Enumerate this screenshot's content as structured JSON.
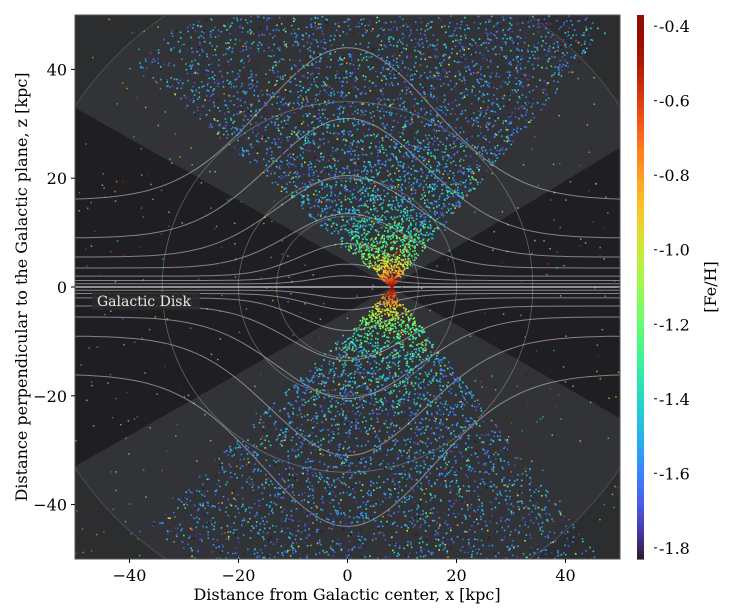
{
  "chart_data": {
    "type": "scatter",
    "title": "",
    "xlabel": "Distance from Galactic center, x [kpc]",
    "ylabel": "Distance perpendicular to the Galactic plane, z [kpc]",
    "xlim": [
      -50,
      50
    ],
    "ylim": [
      -50,
      50
    ],
    "xticks": [
      -40,
      -20,
      0,
      20,
      40
    ],
    "yticks": [
      -40,
      -20,
      0,
      20,
      40
    ],
    "xtick_labels": [
      "−40",
      "−20",
      "0",
      "20",
      "40"
    ],
    "ytick_labels": [
      "−40",
      "−20",
      "0",
      "20",
      "40"
    ],
    "grid": false,
    "annotation": "Galactic Disk",
    "colorbar": {
      "label": "[Fe/H]",
      "range": [
        -1.83,
        -0.37
      ],
      "ticks": [
        -0.4,
        -0.6,
        -0.8,
        -1.0,
        -1.2,
        -1.4,
        -1.6,
        -1.8
      ],
      "tick_labels": [
        "-0.4",
        "-0.6",
        "-0.8",
        "-1.0",
        "-1.2",
        "-1.4",
        "-1.6",
        "-1.8"
      ],
      "colormap": "turbo"
    },
    "star_distribution": {
      "cone_vertex": [
        8,
        0
      ],
      "metal_rich_fe_h": -0.4,
      "metal_poor_fe_h": -1.8
    }
  },
  "colors": {
    "outside": "#000000",
    "halo": "#1f1e23",
    "cone": "#34363a",
    "lines": "#c8c8c8"
  }
}
